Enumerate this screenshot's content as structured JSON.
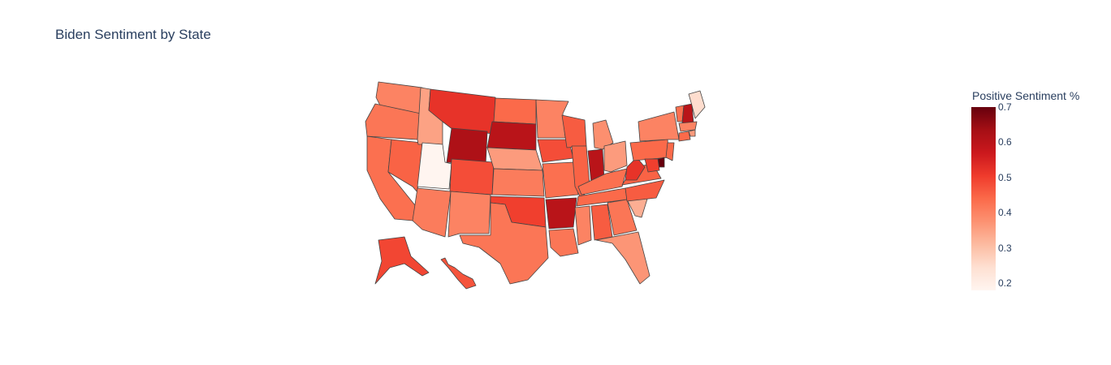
{
  "title": "Biden Sentiment by State",
  "legend": {
    "title": "Positive Sentiment %",
    "min": 0.18,
    "max": 0.7,
    "ticks": [
      "0.7",
      "0.6",
      "0.5",
      "0.4",
      "0.3",
      "0.2"
    ],
    "colorscale": [
      "#fff5f0",
      "#fee0d2",
      "#fcbba1",
      "#fc9272",
      "#fb6a4a",
      "#ef3b2c",
      "#cb181d",
      "#a50f15",
      "#67000d"
    ]
  },
  "map_data": {
    "type": "choropleth",
    "scope": "usa",
    "metric": "Positive Sentiment %",
    "border_color": "#444444",
    "states": {
      "WA": 0.4,
      "OR": 0.42,
      "CA": 0.43,
      "NV": 0.45,
      "ID": 0.35,
      "MT": 0.52,
      "WY": 0.62,
      "UT": 0.18,
      "AZ": 0.41,
      "CO": 0.48,
      "NM": 0.4,
      "ND": 0.44,
      "SD": 0.6,
      "NE": 0.36,
      "KS": 0.41,
      "OK": 0.5,
      "TX": 0.42,
      "MN": 0.4,
      "IA": 0.48,
      "MO": 0.43,
      "AR": 0.6,
      "LA": 0.42,
      "WI": 0.46,
      "IL": 0.45,
      "MI": 0.38,
      "IN": 0.6,
      "OH": 0.36,
      "KY": 0.43,
      "TN": 0.44,
      "MS": 0.4,
      "AL": 0.46,
      "GA": 0.42,
      "FL": 0.37,
      "SC": 0.33,
      "NC": 0.46,
      "VA": 0.45,
      "WV": 0.52,
      "PA": 0.44,
      "NY": 0.4,
      "VT": 0.43,
      "NH": 0.6,
      "ME": 0.25,
      "MA": 0.4,
      "RI": 0.36,
      "CT": 0.44,
      "NJ": 0.44,
      "DE": 0.7,
      "MD": 0.5,
      "AK": 0.49,
      "HI": 0.47
    }
  }
}
